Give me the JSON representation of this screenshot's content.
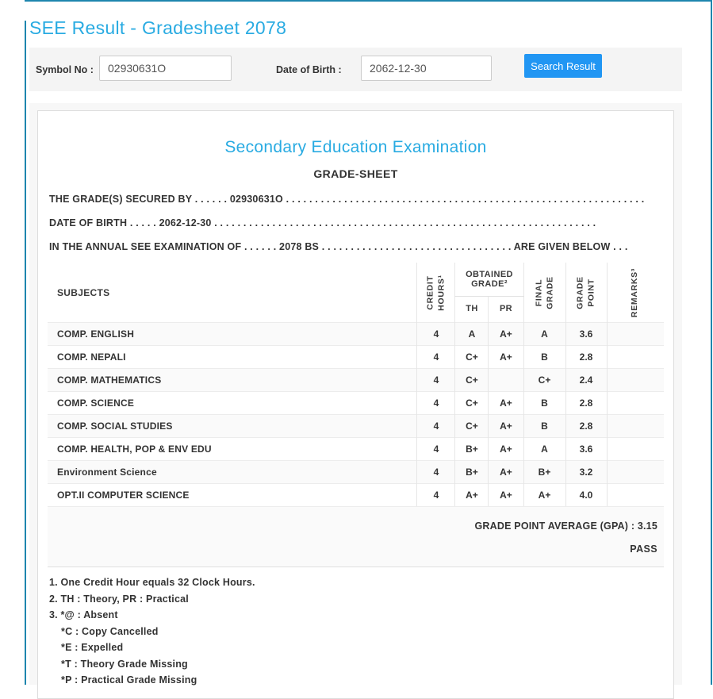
{
  "page": {
    "title": "SEE Result - Gradesheet 2078"
  },
  "colors": {
    "accent_heading_blue": "#29abe2",
    "search_button_blue": "#2196f3",
    "frame_teal": "#1e86ae",
    "panel_gray": "#f4f4f4"
  },
  "search_form": {
    "symbol_label": "Symbol No :",
    "symbol_value": "02930631O",
    "dob_label": "Date of Birth :",
    "dob_value": "2062-12-30",
    "search_button": "Search Result"
  },
  "sheet": {
    "exam_title": "Secondary Education Examination",
    "subtitle": "GRADE-SHEET",
    "line_secured_by": "THE GRADE(S) SECURED BY . . . . . . 02930631O . . . . . . . . . . . . . . . . . . . . . . . . . . . . . . . . . . . . . . . . . . . . . . . . . . . . . . . . . . . . . .",
    "line_dob": "DATE OF BIRTH . . . . . 2062-12-30 . . . . . . . . . . . . . . . . . . . . . . . . . . . . . . . . . . . . . . . . . . . . . . . . . . . . . . . . . . . . . . . . . .",
    "line_exam": "IN THE ANNUAL SEE EXAMINATION OF . . . . . . 2078 BS . . . . . . . . . . . . . . . . . . . . . . . . . . . . . . . . . ARE GIVEN BELOW . . .",
    "table": {
      "subjects_header": "SUBJECTS",
      "credit_line1": "CREDIT",
      "credit_line2": "HOURS¹",
      "obtained_header": "OBTAINED GRADE²",
      "th_header": "TH",
      "pr_header": "PR",
      "final_line1": "FINAL",
      "final_line2": "GRADE",
      "gp_line1": "GRADE",
      "gp_line2": "POINT",
      "remarks_header": "REMARKS³",
      "rows": [
        {
          "subject": "COMP. ENGLISH",
          "credit": "4",
          "th": "A",
          "pr": "A+",
          "final": "A",
          "gp": "3.6",
          "remarks": ""
        },
        {
          "subject": "COMP. NEPALI",
          "credit": "4",
          "th": "C+",
          "pr": "A+",
          "final": "B",
          "gp": "2.8",
          "remarks": ""
        },
        {
          "subject": "COMP. MATHEMATICS",
          "credit": "4",
          "th": "C+",
          "pr": "",
          "final": "C+",
          "gp": "2.4",
          "remarks": ""
        },
        {
          "subject": "COMP. SCIENCE",
          "credit": "4",
          "th": "C+",
          "pr": "A+",
          "final": "B",
          "gp": "2.8",
          "remarks": ""
        },
        {
          "subject": "COMP. SOCIAL STUDIES",
          "credit": "4",
          "th": "C+",
          "pr": "A+",
          "final": "B",
          "gp": "2.8",
          "remarks": ""
        },
        {
          "subject": "COMP. HEALTH, POP & ENV EDU",
          "credit": "4",
          "th": "B+",
          "pr": "A+",
          "final": "A",
          "gp": "3.6",
          "remarks": ""
        },
        {
          "subject": "Environment Science",
          "credit": "4",
          "th": "B+",
          "pr": "A+",
          "final": "B+",
          "gp": "3.2",
          "remarks": ""
        },
        {
          "subject": "OPT.II COMPUTER SCIENCE",
          "credit": "4",
          "th": "A+",
          "pr": "A+",
          "final": "A+",
          "gp": "4.0",
          "remarks": ""
        }
      ]
    },
    "gpa_line": "GRADE POINT AVERAGE (GPA) : 3.15",
    "result_line": "PASS",
    "notes": [
      "1. One Credit Hour equals 32 Clock Hours.",
      "2. TH : Theory, PR : Practical",
      "3. *@ : Absent",
      "*C : Copy Cancelled",
      "*E : Expelled",
      "*T : Theory Grade Missing",
      "*P : Practical Grade Missing"
    ]
  }
}
